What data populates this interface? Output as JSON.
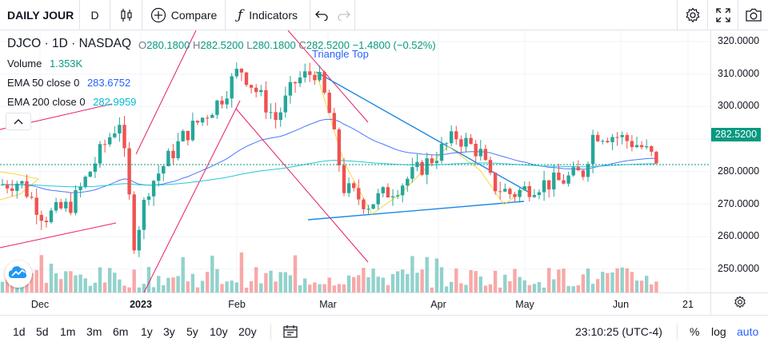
{
  "toolbar": {
    "symbol": "DAILY JOUR",
    "interval": "D",
    "compare_label": "Compare",
    "indicators_label": "Indicators"
  },
  "legend": {
    "symbol": "DJCO",
    "interval": "1D",
    "exchange": "NASDAQ",
    "o_label": "O",
    "o_value": "280.1800",
    "h_label": "H",
    "h_value": "282.5200",
    "l_label": "L",
    "l_value": "280.1800",
    "c_label": "C",
    "c_value": "282.5200",
    "change": "−1.4800 (−0.52%)",
    "volume_label": "Volume",
    "volume_value": "1.353K",
    "ema50_label": "EMA 50 close 0",
    "ema50_value": "283.6752",
    "ema200_label": "EMA 200 close 0",
    "ema200_value": "282.9959"
  },
  "annotation": {
    "pattern_label": "Triangle Top"
  },
  "price_axis": {
    "ticks": [
      "320.0000",
      "310.0000",
      "300.0000",
      "290.0000",
      "280.0000",
      "270.0000",
      "260.0000",
      "250.0000"
    ],
    "last_price": "282.5200"
  },
  "time_axis": {
    "ticks": [
      "Dec",
      "2023",
      "Feb",
      "Mar",
      "Apr",
      "May",
      "Jun",
      "21"
    ]
  },
  "bottom_bar": {
    "ranges": [
      "1d",
      "5d",
      "1m",
      "3m",
      "6m",
      "1y",
      "3y",
      "5y",
      "10y",
      "20y"
    ],
    "clock": "23:10:25 (UTC-4)",
    "percent_label": "%",
    "log_label": "log",
    "auto_label": "auto"
  },
  "colors": {
    "up": "#26a69a",
    "down": "#ef5350",
    "ema50": "#2962ff",
    "ema200": "#26c6da",
    "accent": "#2962ff",
    "fib_lines": "#e91e63",
    "trendline": "#1e88e5",
    "zigzag": "#f5d742"
  },
  "chart_data": {
    "type": "candlestick",
    "symbol": "DJCO",
    "interval": "1D",
    "ylim": [
      244,
      323
    ],
    "x_ticks": [
      "Dec",
      "2023",
      "Feb",
      "Mar",
      "Apr",
      "May",
      "Jun",
      "21"
    ],
    "y_ticks": [
      320,
      310,
      300,
      290,
      280,
      270,
      260,
      250
    ],
    "last_price": 282.52,
    "approx_monthly_price_levels": [
      {
        "period": "Dec",
        "value": 268
      },
      {
        "period": "Jan",
        "value": 285
      },
      {
        "period": "Feb",
        "value": 305
      },
      {
        "period": "Mar",
        "value": 272
      },
      {
        "period": "Apr",
        "value": 286
      },
      {
        "period": "May",
        "value": 276
      },
      {
        "period": "Jun",
        "value": 290
      }
    ]
  }
}
